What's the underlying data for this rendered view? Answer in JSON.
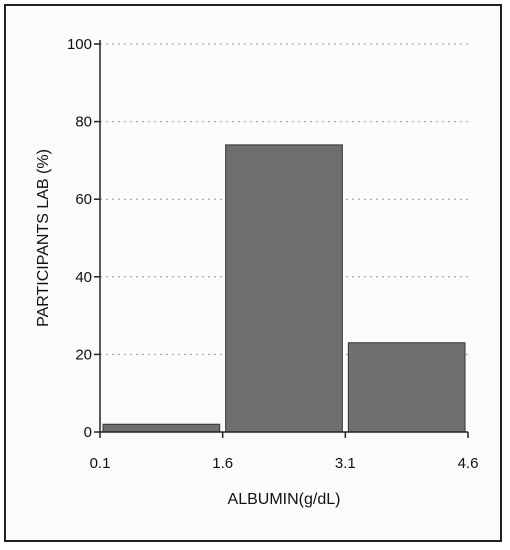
{
  "chart_data": {
    "type": "bar",
    "bins": [
      {
        "from": 0.1,
        "to": 1.6,
        "value": 2
      },
      {
        "from": 1.6,
        "to": 3.1,
        "value": 74
      },
      {
        "from": 3.1,
        "to": 4.6,
        "value": 23
      }
    ],
    "x_ticks": [
      "0.1",
      "1.6",
      "3.1",
      "4.6"
    ],
    "y_ticks": [
      "0",
      "20",
      "40",
      "60",
      "80",
      "100"
    ],
    "xlabel": "ALBUMIN(g/dL)",
    "ylabel": "PARTICIPANTS LAB (%)",
    "xlim": [
      0.1,
      4.6
    ],
    "ylim": [
      0,
      100
    ],
    "grid": "horizontal dotted",
    "bar_color": "#6f6f6f",
    "frame_color": "#222222"
  }
}
